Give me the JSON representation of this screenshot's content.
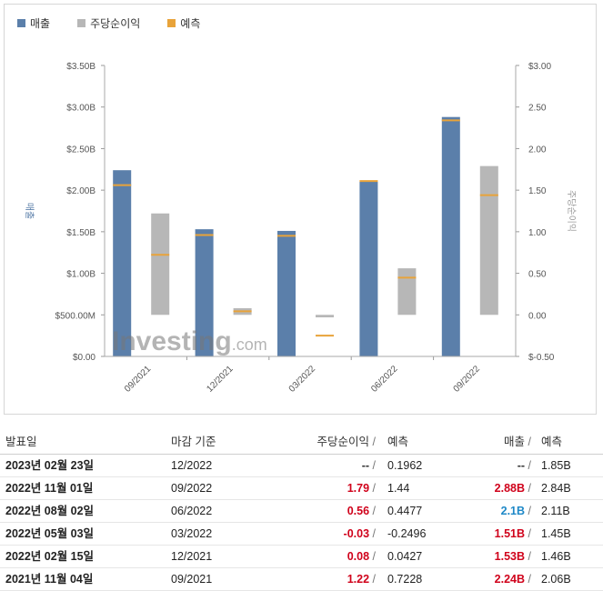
{
  "legend": {
    "revenue": "매출",
    "eps": "주당순이익",
    "forecast": "예측"
  },
  "colors": {
    "revenue": "#5b7faa",
    "eps": "#b7b7b7",
    "forecast": "#e8a33a",
    "red": "#d0021b",
    "blue": "#1e88c7"
  },
  "watermark": {
    "brand": "Investing",
    "suffix": ".com"
  },
  "chart_data": {
    "type": "bar",
    "categories": [
      "09/2021",
      "12/2021",
      "03/2022",
      "06/2022",
      "09/2022"
    ],
    "series": [
      {
        "name": "매출",
        "axis": "left",
        "values": [
          2.24,
          1.53,
          1.51,
          2.1,
          2.88
        ],
        "unit": "B"
      },
      {
        "name": "주당순이익",
        "axis": "right",
        "values": [
          1.22,
          0.08,
          -0.03,
          0.56,
          1.79
        ]
      },
      {
        "name": "예측",
        "of": "매출",
        "axis": "left",
        "values": [
          2.06,
          1.46,
          1.45,
          2.11,
          2.84
        ]
      },
      {
        "name": "예측",
        "of": "주당순이익",
        "axis": "right",
        "values": [
          0.7228,
          0.0427,
          -0.2496,
          0.4477,
          1.44
        ]
      }
    ],
    "y_left": {
      "label": "매출",
      "range": [
        0,
        3.5
      ],
      "ticks": [
        "$0.00",
        "$500.00M",
        "$1.00B",
        "$1.50B",
        "$2.00B",
        "$2.50B",
        "$3.00B",
        "$3.50B"
      ]
    },
    "y_right": {
      "label": "주당순이익",
      "range": [
        -0.5,
        3.0
      ],
      "ticks": [
        "$-0.50",
        "0.00",
        "0.50",
        "1.00",
        "1.50",
        "2.00",
        "2.50",
        "$3.00"
      ]
    },
    "grid": false,
    "legend_position": "top-left"
  },
  "table": {
    "headers": {
      "date": "발표일",
      "period": "마감 기준",
      "eps": "주당순이익",
      "eps_forecast": "예측",
      "revenue": "매출",
      "revenue_forecast": "예측",
      "slash": "/"
    },
    "rows": [
      {
        "date": "2023년 02월 23일",
        "period": "12/2022",
        "eps": "--",
        "eps_color": "dark",
        "eps_forecast": "0.1962",
        "revenue": "--",
        "revenue_color": "dark",
        "revenue_forecast": "1.85B"
      },
      {
        "date": "2022년 11월 01일",
        "period": "09/2022",
        "eps": "1.79",
        "eps_color": "red",
        "eps_forecast": "1.44",
        "revenue": "2.88B",
        "revenue_color": "red",
        "revenue_forecast": "2.84B"
      },
      {
        "date": "2022년 08월 02일",
        "period": "06/2022",
        "eps": "0.56",
        "eps_color": "red",
        "eps_forecast": "0.4477",
        "revenue": "2.1B",
        "revenue_color": "blue",
        "revenue_forecast": "2.11B"
      },
      {
        "date": "2022년 05월 03일",
        "period": "03/2022",
        "eps": "-0.03",
        "eps_color": "red",
        "eps_forecast": "-0.2496",
        "revenue": "1.51B",
        "revenue_color": "red",
        "revenue_forecast": "1.45B"
      },
      {
        "date": "2022년 02월 15일",
        "period": "12/2021",
        "eps": "0.08",
        "eps_color": "red",
        "eps_forecast": "0.0427",
        "revenue": "1.53B",
        "revenue_color": "red",
        "revenue_forecast": "1.46B"
      },
      {
        "date": "2021년 11월 04일",
        "period": "09/2021",
        "eps": "1.22",
        "eps_color": "red",
        "eps_forecast": "0.7228",
        "revenue": "2.24B",
        "revenue_color": "red",
        "revenue_forecast": "2.06B"
      }
    ]
  }
}
